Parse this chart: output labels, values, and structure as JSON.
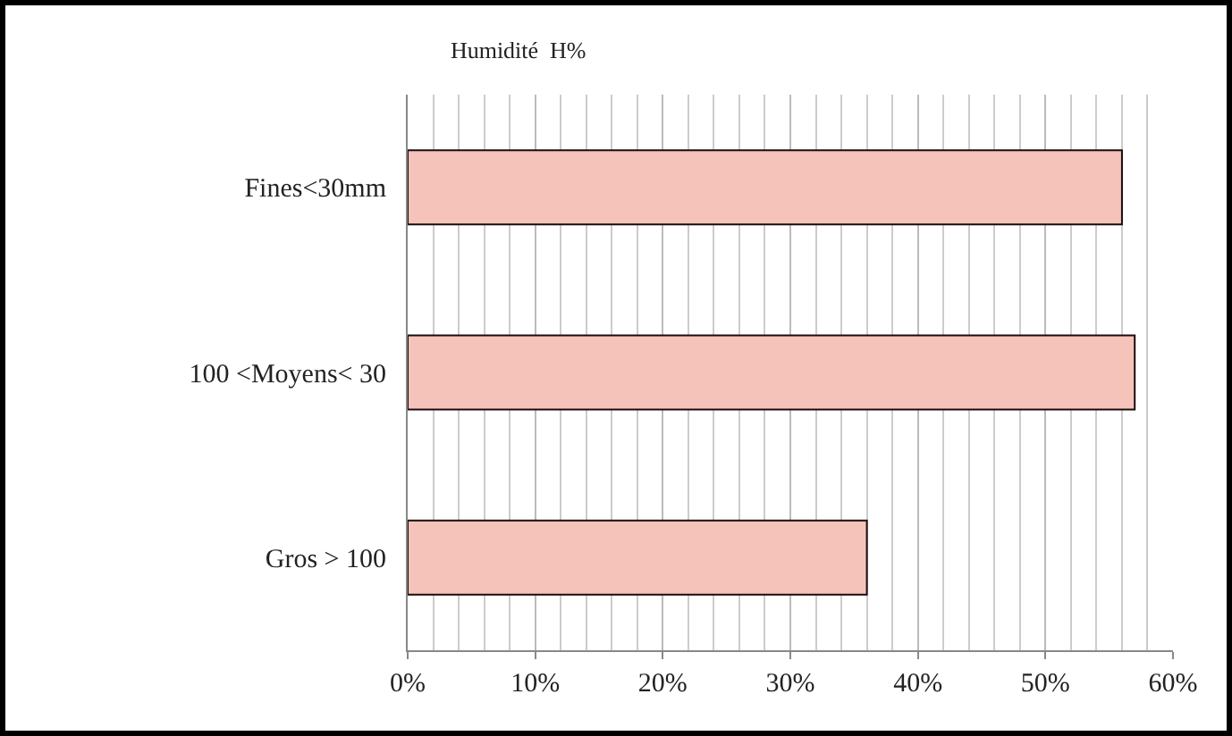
{
  "chart_data": {
    "type": "bar",
    "orientation": "horizontal",
    "title": "Humidité  H%",
    "categories": [
      "Fines<30mm",
      "100 <Moyens< 30",
      "Gros > 100"
    ],
    "values": [
      56,
      57,
      36
    ],
    "color": "#f6c3bb",
    "xlim": [
      0,
      60
    ],
    "xticks": [
      {
        "value": 0,
        "label": "0%"
      },
      {
        "value": 10,
        "label": "10%"
      },
      {
        "value": 20,
        "label": "20%"
      },
      {
        "value": 30,
        "label": "30%"
      },
      {
        "value": 40,
        "label": "40%"
      },
      {
        "value": 50,
        "label": "50%"
      },
      {
        "value": 60,
        "label": "60%"
      }
    ],
    "grid": "x",
    "legend": false
  }
}
